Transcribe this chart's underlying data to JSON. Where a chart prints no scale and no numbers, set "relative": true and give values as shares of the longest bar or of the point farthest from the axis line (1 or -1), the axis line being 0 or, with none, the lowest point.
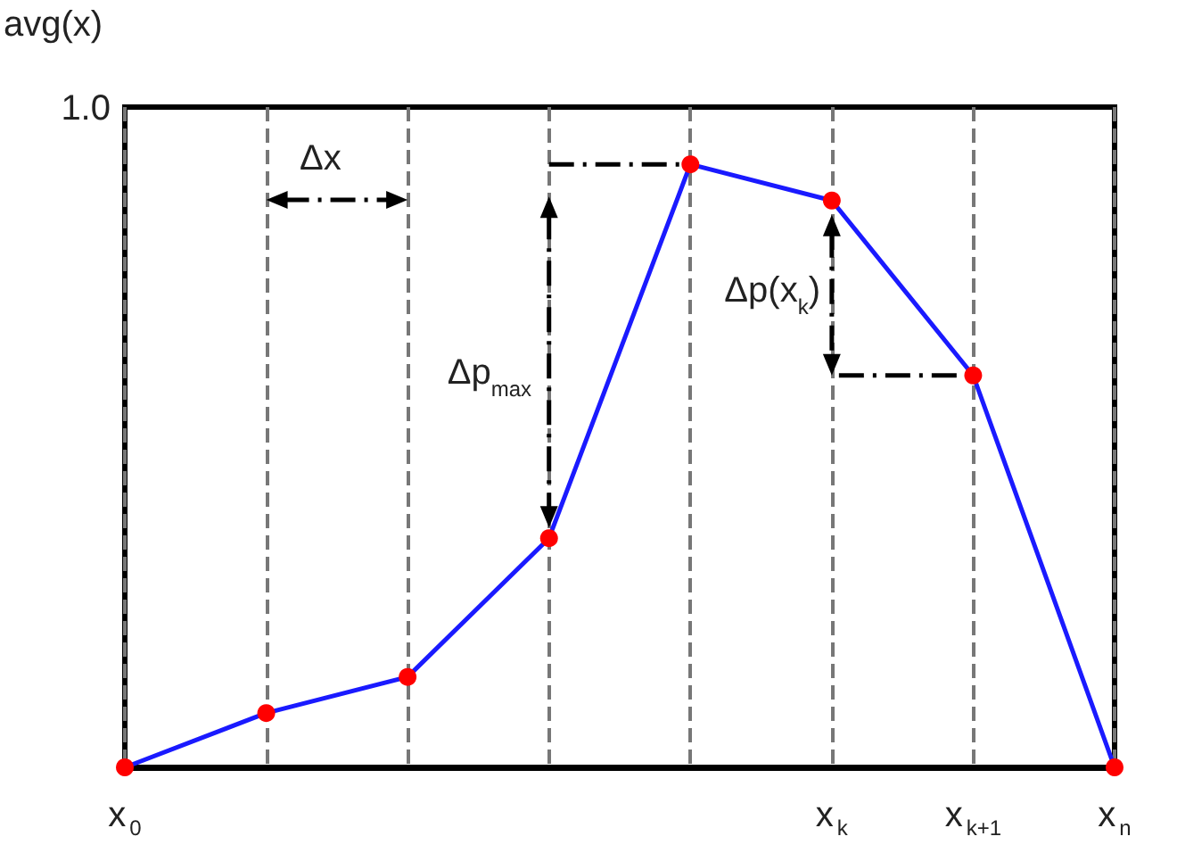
{
  "chart_data": {
    "type": "line",
    "relative": true,
    "ylabel": "avg(x)",
    "categories": [
      "x$_{0}$",
      null,
      null,
      null,
      null,
      "x$_{k}$",
      "x$_{k+1}$",
      "x$_{n}$"
    ],
    "series": [
      {
        "color": "#1a1aff",
        "colors": [
          "#ff0000",
          "#ff0000",
          "#ff0000",
          "#ff0000",
          "#ff0000",
          "#ff0000",
          "#ff0000",
          "#ff0000"
        ],
        "values": [
          0,
          0.09,
          0.15,
          0.38,
          1,
          0.94,
          0.65,
          0
        ]
      }
    ],
    "annotations": [
      "1.0",
      "Δx",
      "Δp$_{max}$",
      "Δp(x$_{k}$)"
    ],
    "grid": "x",
    "marker": "circle",
    "line_style": "solid"
  }
}
